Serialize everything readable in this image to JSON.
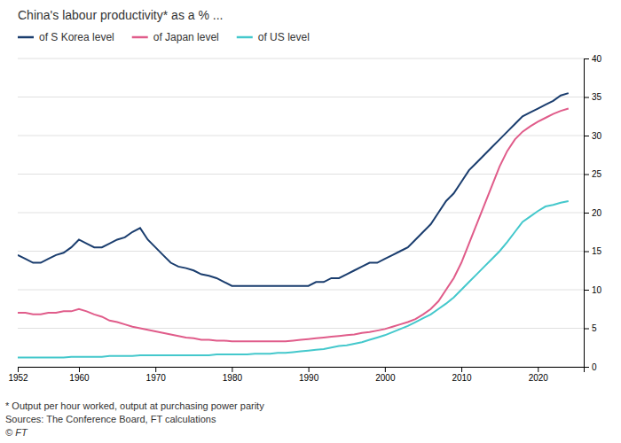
{
  "chart_data": {
    "type": "line",
    "title": "China's labour productivity* as a % ...",
    "annotations": [
      "* Output per hour worked, output at purchasing power parity",
      "Sources: The Conference Board, FT calculations",
      "© FT"
    ],
    "x": [
      1952,
      1953,
      1954,
      1955,
      1956,
      1957,
      1958,
      1959,
      1960,
      1961,
      1962,
      1963,
      1964,
      1965,
      1966,
      1967,
      1968,
      1969,
      1970,
      1971,
      1972,
      1973,
      1974,
      1975,
      1976,
      1977,
      1978,
      1979,
      1980,
      1981,
      1982,
      1983,
      1984,
      1985,
      1986,
      1987,
      1988,
      1989,
      1990,
      1991,
      1992,
      1993,
      1994,
      1995,
      1996,
      1997,
      1998,
      1999,
      2000,
      2001,
      2002,
      2003,
      2004,
      2005,
      2006,
      2007,
      2008,
      2009,
      2010,
      2011,
      2012,
      2013,
      2014,
      2015,
      2016,
      2017,
      2018,
      2019,
      2020,
      2021,
      2022,
      2023,
      2024
    ],
    "series": [
      {
        "name": "of S Korea level",
        "color": "#1a3d6e",
        "values": [
          14.5,
          14.0,
          13.5,
          13.5,
          14.0,
          14.5,
          14.8,
          15.5,
          16.5,
          16.0,
          15.5,
          15.5,
          16.0,
          16.5,
          16.8,
          17.5,
          18.0,
          16.5,
          15.5,
          14.5,
          13.5,
          13.0,
          12.8,
          12.5,
          12.0,
          11.8,
          11.5,
          11.0,
          10.5,
          10.5,
          10.5,
          10.5,
          10.5,
          10.5,
          10.5,
          10.5,
          10.5,
          10.5,
          10.5,
          11.0,
          11.0,
          11.5,
          11.5,
          12.0,
          12.5,
          13.0,
          13.5,
          13.5,
          14.0,
          14.5,
          15.0,
          15.5,
          16.5,
          17.5,
          18.5,
          20.0,
          21.5,
          22.5,
          24.0,
          25.5,
          26.5,
          27.5,
          28.5,
          29.5,
          30.5,
          31.5,
          32.5,
          33.0,
          33.5,
          34.0,
          34.5,
          35.2,
          35.5
        ]
      },
      {
        "name": "of Japan level",
        "color": "#e05c8a",
        "values": [
          7.0,
          7.0,
          6.8,
          6.8,
          7.0,
          7.0,
          7.2,
          7.2,
          7.5,
          7.2,
          6.8,
          6.5,
          6.0,
          5.8,
          5.5,
          5.2,
          5.0,
          4.8,
          4.6,
          4.4,
          4.2,
          4.0,
          3.8,
          3.7,
          3.5,
          3.5,
          3.4,
          3.4,
          3.3,
          3.3,
          3.3,
          3.3,
          3.3,
          3.3,
          3.3,
          3.3,
          3.4,
          3.5,
          3.6,
          3.7,
          3.8,
          3.9,
          4.0,
          4.1,
          4.2,
          4.4,
          4.5,
          4.7,
          4.9,
          5.2,
          5.5,
          5.8,
          6.2,
          6.8,
          7.5,
          8.5,
          10.0,
          11.5,
          13.5,
          16.0,
          18.5,
          21.0,
          23.5,
          26.0,
          28.0,
          29.5,
          30.5,
          31.2,
          31.8,
          32.3,
          32.8,
          33.2,
          33.5
        ]
      },
      {
        "name": "of US level",
        "color": "#44c8cc",
        "values": [
          1.2,
          1.2,
          1.2,
          1.2,
          1.2,
          1.2,
          1.2,
          1.3,
          1.3,
          1.3,
          1.3,
          1.3,
          1.4,
          1.4,
          1.4,
          1.4,
          1.5,
          1.5,
          1.5,
          1.5,
          1.5,
          1.5,
          1.5,
          1.5,
          1.5,
          1.5,
          1.6,
          1.6,
          1.6,
          1.6,
          1.6,
          1.7,
          1.7,
          1.7,
          1.8,
          1.8,
          1.9,
          2.0,
          2.1,
          2.2,
          2.3,
          2.5,
          2.7,
          2.8,
          3.0,
          3.2,
          3.5,
          3.8,
          4.1,
          4.5,
          4.9,
          5.3,
          5.8,
          6.3,
          6.8,
          7.5,
          8.2,
          9.0,
          10.0,
          11.0,
          12.0,
          13.0,
          14.0,
          15.0,
          16.2,
          17.5,
          18.8,
          19.5,
          20.2,
          20.8,
          21.0,
          21.3,
          21.5
        ]
      }
    ],
    "xlim": [
      1952,
      2026
    ],
    "xticks": [
      1952,
      1960,
      1970,
      1980,
      1990,
      2000,
      2010,
      2020
    ],
    "ylim": [
      0,
      40
    ],
    "yticks": [
      0,
      5,
      10,
      15,
      20,
      25,
      30,
      35,
      40
    ],
    "grid": true,
    "legend": "top-left"
  }
}
